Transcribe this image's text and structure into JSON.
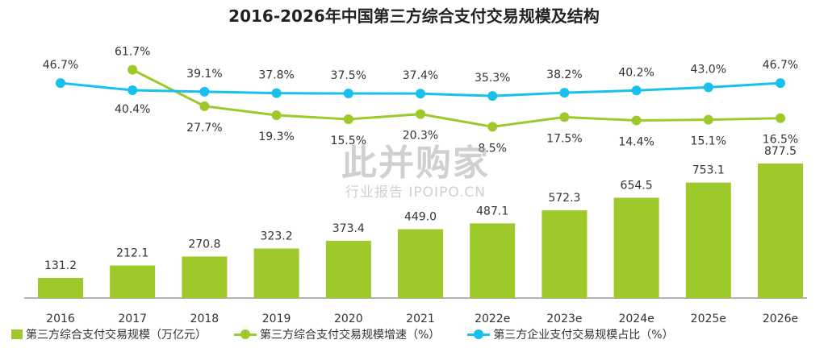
{
  "chart_data": {
    "type": "bar+line",
    "title": "2016-2026年中国第三方综合支付交易规模及结构",
    "categories": [
      "2016",
      "2017",
      "2018",
      "2019",
      "2020",
      "2021",
      "2022e",
      "2023e",
      "2024e",
      "2025e",
      "2026e"
    ],
    "series": [
      {
        "name": "第三方综合支付交易规模（万亿元）",
        "type": "bar",
        "color": "#9DC92A",
        "values": [
          131.2,
          212.1,
          270.8,
          323.2,
          373.4,
          449.0,
          487.1,
          572.3,
          654.5,
          753.1,
          877.5
        ],
        "labels": [
          "131.2",
          "212.1",
          "270.8",
          "323.2",
          "373.4",
          "449.0",
          "487.1",
          "572.3",
          "654.5",
          "753.1",
          "877.5"
        ]
      },
      {
        "name": "第三方综合支付交易规模增速（%）",
        "type": "line",
        "color": "#9DC92A",
        "values": [
          null,
          61.7,
          27.7,
          19.3,
          15.5,
          20.3,
          8.5,
          17.5,
          14.4,
          15.1,
          16.5
        ],
        "labels": [
          "",
          "61.7%",
          "27.7%",
          "19.3%",
          "15.5%",
          "20.3%",
          "8.5%",
          "17.5%",
          "14.4%",
          "15.1%",
          "16.5%"
        ]
      },
      {
        "name": "第三方企业支付交易规模占比（%）",
        "type": "line",
        "color": "#18C0EE",
        "values": [
          46.7,
          40.4,
          39.1,
          37.8,
          37.5,
          37.4,
          35.3,
          38.2,
          40.2,
          43.0,
          46.7
        ],
        "labels": [
          "46.7%",
          "40.4%",
          "39.1%",
          "37.8%",
          "37.5%",
          "37.4%",
          "35.3%",
          "38.2%",
          "40.2%",
          "43.0%",
          "46.7%"
        ]
      }
    ],
    "grid": false,
    "legend_position": "bottom"
  },
  "watermark": {
    "main": "此并购家",
    "sub": "行业报告 IPOIPO.CN"
  }
}
